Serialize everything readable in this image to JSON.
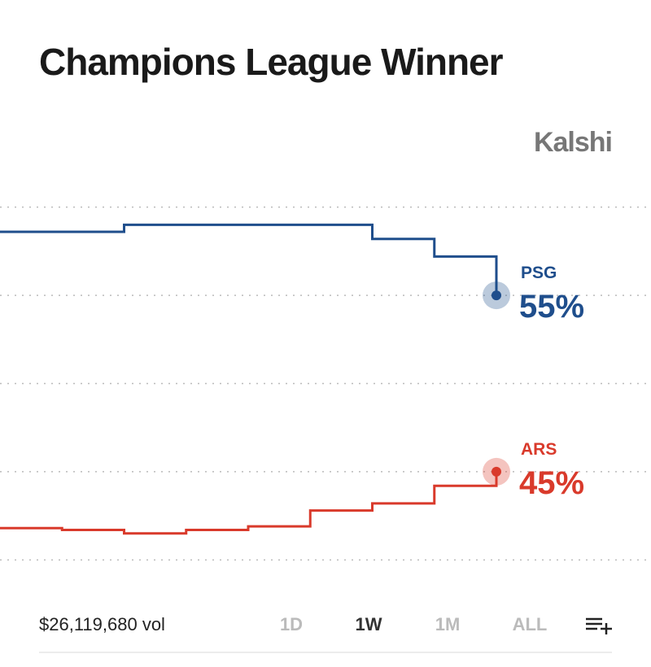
{
  "chart_data": {
    "type": "step-line",
    "title": "Champions League Winner",
    "source": "Kalshi",
    "volume": "$26,119,680 vol",
    "ranges": [
      "1D",
      "1W",
      "1M",
      "ALL"
    ],
    "selected_range": "1W",
    "categories": [
      null,
      null,
      null,
      null,
      null,
      null,
      null,
      null,
      null
    ],
    "ylim": [
      39,
      61
    ],
    "yticks": [
      40,
      45,
      50,
      55,
      60
    ],
    "grid": true,
    "series": [
      {
        "name": "PSG",
        "color": "#1f4e8c",
        "values": [
          58.6,
          58.6,
          59.0,
          59.0,
          59.0,
          59.0,
          58.2,
          57.2,
          55
        ],
        "value_labels": [
          null,
          null,
          null,
          null,
          null,
          null,
          null,
          null,
          "55%"
        ]
      },
      {
        "name": "ARS",
        "color": "#d93a2b",
        "values": [
          41.8,
          41.7,
          41.5,
          41.7,
          41.9,
          42.8,
          43.2,
          44.2,
          45
        ],
        "value_labels": [
          null,
          null,
          null,
          null,
          null,
          null,
          null,
          null,
          "45%"
        ]
      }
    ]
  }
}
